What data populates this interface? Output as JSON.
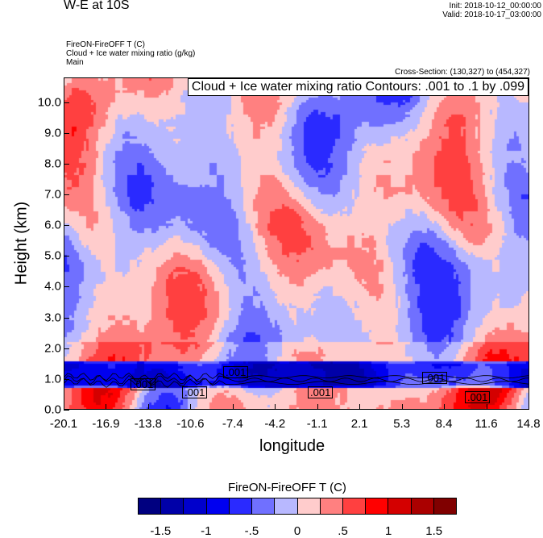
{
  "header": {
    "title": "W-E at 10S",
    "init": "Init: 2018-10-12_00:00:00",
    "valid": "Valid: 2018-10-17_03:00:00",
    "field1": "FireON-FireOFF T   (C)",
    "field2": "Cloud + Ice water mixing ratio   (g/kg)",
    "field3": "Main",
    "cross_section": "Cross-Section: (130,327) to (454,327)"
  },
  "chart_data": {
    "type": "heatmap",
    "title": "W-E at 10S",
    "xlabel": "longitude",
    "ylabel": "Height (km)",
    "xticks": [
      "-20.1",
      "-16.9",
      "-13.8",
      "-10.6",
      "-7.4",
      "-4.2",
      "-1.1",
      "2.1",
      "5.3",
      "8.4",
      "11.6",
      "14.8"
    ],
    "yticks": [
      "0.0",
      "1.0",
      "2.0",
      "3.0",
      "4.0",
      "5.0",
      "6.0",
      "7.0",
      "8.0",
      "9.0",
      "10.0"
    ],
    "xlim": [
      -20.1,
      14.8
    ],
    "ylim": [
      0,
      10.8
    ],
    "contour_info": "Cloud + Ice water mixing ratio Contours: .001 to .1 by .099",
    "contour_labels": [
      ".001",
      ".001",
      ".001",
      ".001",
      ".001",
      ".001"
    ],
    "colorbar": {
      "title": "FireON-FireOFF T  (C)",
      "labels": [
        "-1.5",
        "-1",
        "-.5",
        "0",
        ".5",
        "1",
        "1.5"
      ],
      "levels": [
        -1.75,
        -1.5,
        -1.25,
        -1,
        -0.75,
        -0.5,
        -0.25,
        0,
        0.25,
        0.5,
        0.75,
        1,
        1.25,
        1.5,
        1.75
      ],
      "colors": [
        "#000080",
        "#0000a8",
        "#0000cc",
        "#0000f0",
        "#2a2aff",
        "#7070ff",
        "#b8b8ff",
        "#ffcccc",
        "#ff8080",
        "#ff4040",
        "#ff0000",
        "#d40000",
        "#aa0000",
        "#800000"
      ]
    }
  }
}
